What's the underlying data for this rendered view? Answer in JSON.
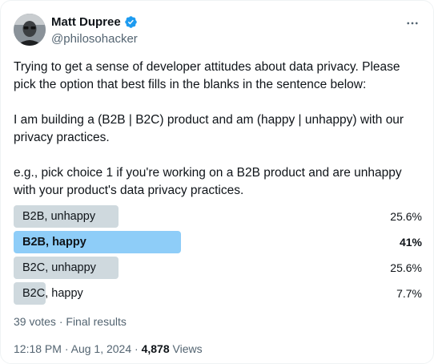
{
  "user": {
    "name": "Matt Dupree",
    "handle": "@philosohacker"
  },
  "tweet": {
    "paragraphs": [
      "Trying to get a sense of developer attitudes about data privacy. Please pick the option that best fills in the blanks in the sentence below:",
      "I am building a (B2B | B2C) product and am (happy | unhappy) with our privacy practices.",
      "e.g., pick choice 1 if you're working on a B2B product and are unhappy with your product's data privacy practices."
    ]
  },
  "poll": {
    "options": [
      {
        "label": "B2B, unhappy",
        "percent_label": "25.6%",
        "fraction": 0.256,
        "winner": false
      },
      {
        "label": "B2B, happy",
        "percent_label": "41%",
        "fraction": 0.41,
        "winner": true
      },
      {
        "label": "B2C, unhappy",
        "percent_label": "25.6%",
        "fraction": 0.256,
        "winner": false
      },
      {
        "label": "B2C, happy",
        "percent_label": "7.7%",
        "fraction": 0.077,
        "winner": false
      }
    ],
    "votes_label": "39 votes",
    "separator": " · ",
    "status_label": "Final results"
  },
  "meta": {
    "time": "12:18 PM",
    "date": "Aug 1, 2024",
    "separator": " · ",
    "views_count": "4,878",
    "views_label": " Views"
  },
  "colors": {
    "bar": "#cfd9de",
    "bar_winner": "#8ecdf8",
    "verified": "#1d9bf0"
  },
  "icons": {
    "verified": "verified-badge-icon",
    "more": "more-horizontal-icon"
  }
}
